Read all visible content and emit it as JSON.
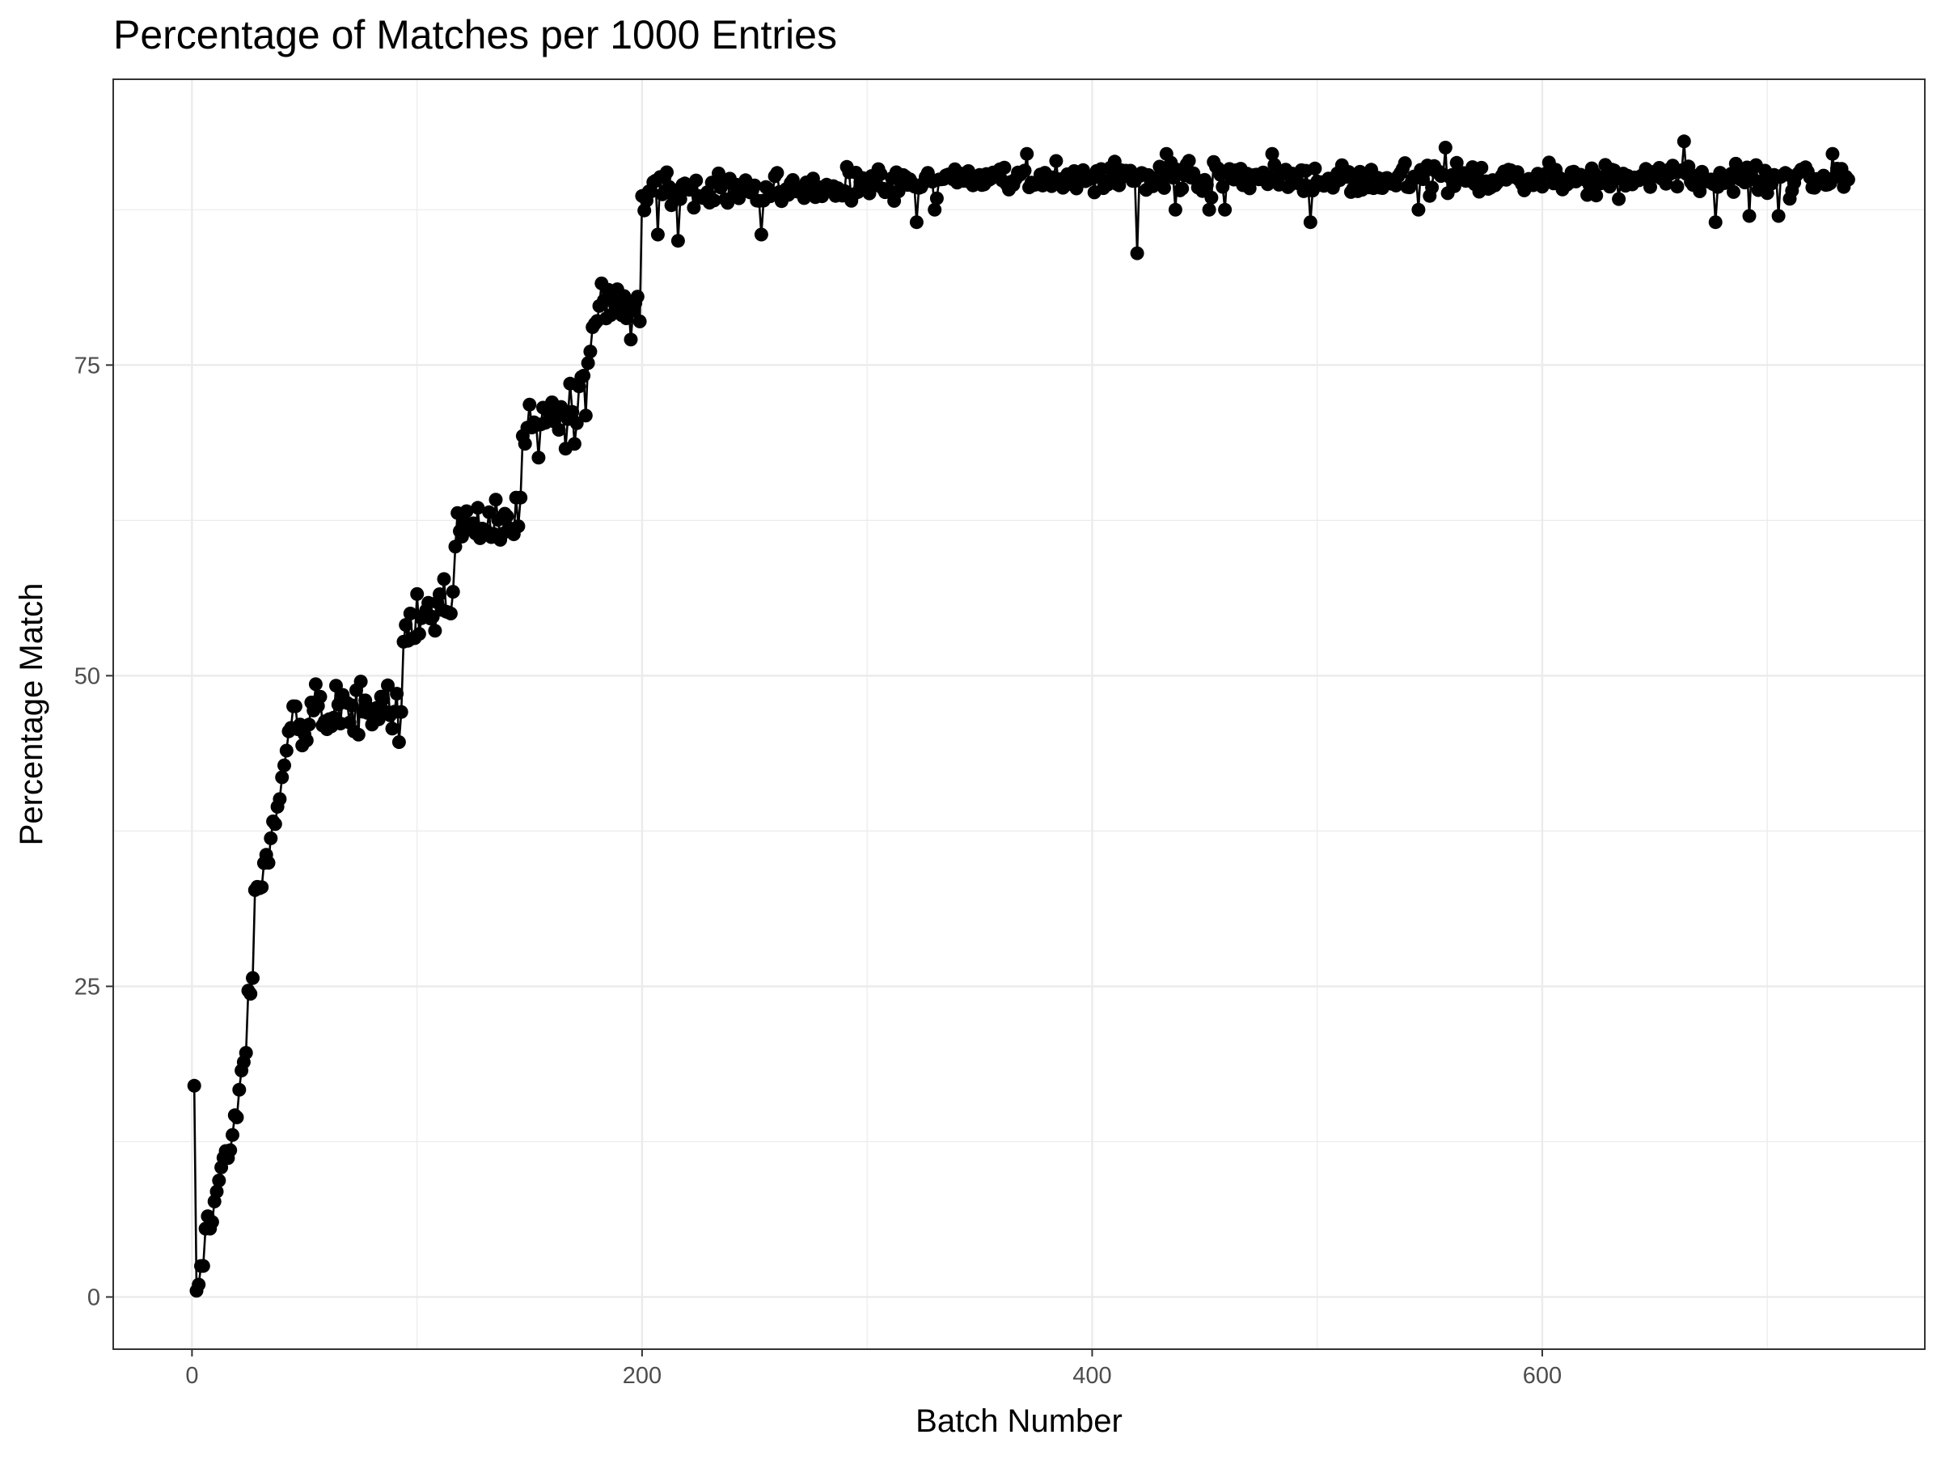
{
  "chart_data": {
    "type": "line",
    "title": "Percentage of Matches per 1000 Entries",
    "xlabel": "Batch Number",
    "ylabel": "Percentage Match",
    "xlim": [
      -35,
      770
    ],
    "ylim": [
      -4.2,
      98
    ],
    "x_ticks": [
      0,
      200,
      400,
      600
    ],
    "x_tick_labels": [
      "0",
      "200",
      "400",
      "600"
    ],
    "y_ticks": [
      0,
      25,
      50,
      75
    ],
    "y_tick_labels": [
      "0",
      "25",
      "50",
      "75"
    ],
    "grid": true,
    "legend": "none",
    "markers": true,
    "series_color": "#000000",
    "series": [
      {
        "anchors": [
          [
            1,
            17
          ],
          [
            2,
            0.5
          ],
          [
            3,
            1
          ],
          [
            4,
            2.5
          ],
          [
            5,
            2.5
          ],
          [
            6,
            5.5
          ],
          [
            7,
            6.5
          ],
          [
            8,
            5.5
          ],
          [
            10,
            6.5
          ],
          [
            12,
            9
          ],
          [
            14,
            11
          ],
          [
            16,
            11
          ],
          [
            18,
            13.5
          ],
          [
            20,
            14.5
          ],
          [
            22,
            18
          ],
          [
            24,
            19.5
          ],
          [
            25,
            24
          ],
          [
            27,
            26
          ],
          [
            28,
            32
          ],
          [
            30,
            33
          ],
          [
            32,
            34
          ],
          [
            34,
            35.5
          ],
          [
            36,
            38
          ],
          [
            38,
            39
          ],
          [
            40,
            41
          ],
          [
            42,
            44
          ],
          [
            44,
            46
          ],
          [
            46,
            47.5
          ],
          [
            48,
            45.5
          ],
          [
            50,
            46.5
          ],
          [
            55,
            47.5
          ],
          [
            60,
            47
          ],
          [
            65,
            48
          ],
          [
            70,
            46.5
          ],
          [
            75,
            47.5
          ],
          [
            80,
            47
          ],
          [
            85,
            47.5
          ],
          [
            90,
            46
          ],
          [
            93,
            49
          ],
          [
            95,
            53.5
          ],
          [
            100,
            55
          ],
          [
            105,
            55
          ],
          [
            110,
            56
          ],
          [
            115,
            56
          ],
          [
            118,
            62
          ],
          [
            122,
            62.5
          ],
          [
            126,
            61
          ],
          [
            130,
            62
          ],
          [
            135,
            62.5
          ],
          [
            140,
            63
          ],
          [
            145,
            63
          ],
          [
            148,
            69
          ],
          [
            152,
            70
          ],
          [
            156,
            69.5
          ],
          [
            160,
            71
          ],
          [
            165,
            70.5
          ],
          [
            170,
            71
          ],
          [
            175,
            72.5
          ],
          [
            178,
            78.5
          ],
          [
            182,
            80
          ],
          [
            186,
            79.5
          ],
          [
            190,
            80
          ],
          [
            195,
            79.5
          ],
          [
            199,
            80
          ],
          [
            200,
            88
          ],
          [
            203,
            89
          ],
          [
            208,
            89.5
          ],
          [
            215,
            89
          ],
          [
            220,
            89
          ],
          [
            230,
            89
          ],
          [
            240,
            89
          ],
          [
            250,
            89
          ],
          [
            260,
            89
          ],
          [
            280,
            89.2
          ],
          [
            300,
            89.5
          ],
          [
            320,
            89.5
          ],
          [
            340,
            89.8
          ],
          [
            360,
            90
          ],
          [
            380,
            90
          ],
          [
            400,
            90
          ],
          [
            420,
            90
          ],
          [
            440,
            90
          ],
          [
            460,
            90
          ],
          [
            480,
            90
          ],
          [
            500,
            90
          ],
          [
            520,
            90
          ],
          [
            540,
            90
          ],
          [
            560,
            90
          ],
          [
            580,
            90
          ],
          [
            600,
            90
          ],
          [
            620,
            90
          ],
          [
            640,
            90
          ],
          [
            660,
            90
          ],
          [
            680,
            90
          ],
          [
            700,
            90
          ],
          [
            720,
            90
          ],
          [
            735,
            90
          ]
        ],
        "noise": [
          {
            "from": 1,
            "to": 45,
            "amplitude": 0.8
          },
          {
            "from": 45,
            "to": 200,
            "amplitude": 1.9
          },
          {
            "from": 200,
            "to": 736,
            "amplitude": 1.0
          }
        ],
        "outliers": [
          [
            207,
            85.5
          ],
          [
            216,
            85
          ],
          [
            253,
            85.5
          ],
          [
            322,
            86.5
          ],
          [
            330,
            87.5
          ],
          [
            420,
            84
          ],
          [
            437,
            87.5
          ],
          [
            452,
            87.5
          ],
          [
            459,
            87.5
          ],
          [
            497,
            86.5
          ],
          [
            545,
            87.5
          ],
          [
            677,
            86.5
          ],
          [
            692,
            87
          ],
          [
            705,
            87
          ],
          [
            663,
            93
          ],
          [
            480,
            92
          ],
          [
            433,
            92
          ],
          [
            371,
            92
          ],
          [
            557,
            92.5
          ],
          [
            729,
            92
          ]
        ],
        "point_count": 736
      }
    ]
  }
}
